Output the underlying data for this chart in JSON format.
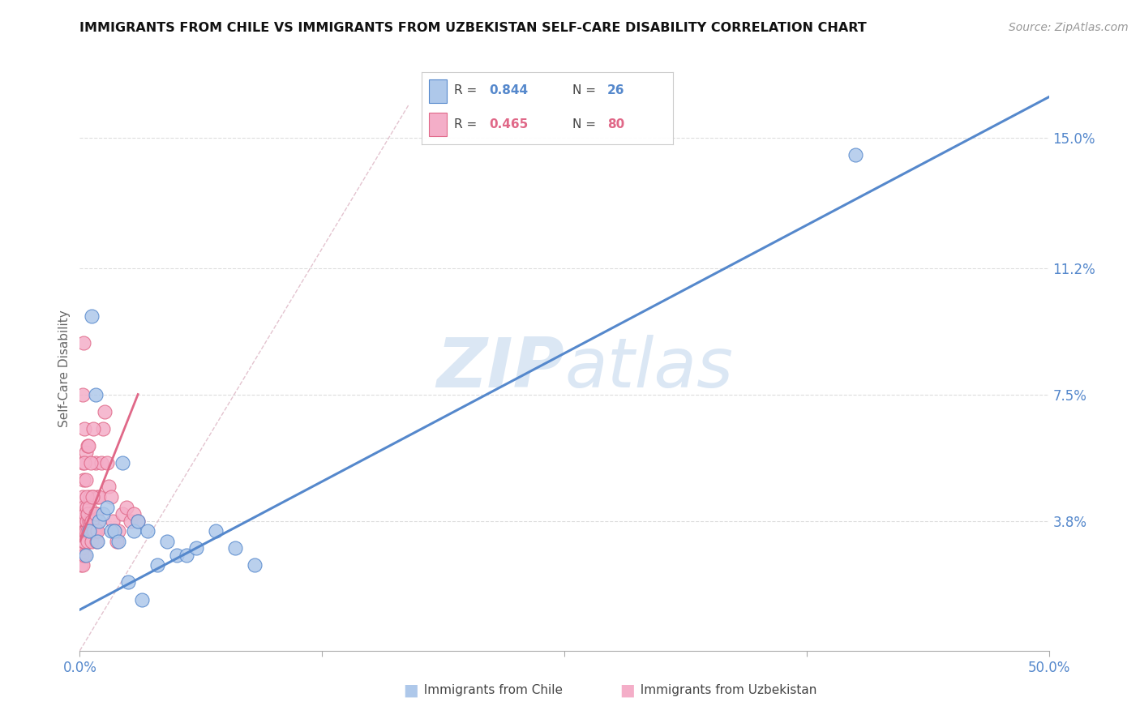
{
  "title": "IMMIGRANTS FROM CHILE VS IMMIGRANTS FROM UZBEKISTAN SELF-CARE DISABILITY CORRELATION CHART",
  "source": "Source: ZipAtlas.com",
  "ylabel": "Self-Care Disability",
  "xlim": [
    0.0,
    50.0
  ],
  "ylim": [
    0.0,
    16.5
  ],
  "ytick_vals": [
    3.8,
    7.5,
    11.2,
    15.0
  ],
  "ytick_labels": [
    "3.8%",
    "7.5%",
    "11.2%",
    "15.0%"
  ],
  "xtick_vals": [
    0,
    12.5,
    25,
    37.5,
    50
  ],
  "xtick_labels": [
    "0.0%",
    "",
    "",
    "",
    "50.0%"
  ],
  "r_chile": "0.844",
  "n_chile": "26",
  "r_uzbekistan": "0.465",
  "n_uzbekistan": "80",
  "chile_fill": "#aec8ea",
  "chile_edge": "#5588cc",
  "uzbek_fill": "#f4aec8",
  "uzbek_edge": "#e06888",
  "chile_line_color": "#5588cc",
  "uzbek_line_color": "#e06888",
  "diag_color": "#cccccc",
  "grid_color": "#dddddd",
  "watermark_color": "#ccddf0",
  "background": "#ffffff",
  "chile_x": [
    0.3,
    0.5,
    0.6,
    0.8,
    0.9,
    1.0,
    1.2,
    1.4,
    1.6,
    1.8,
    2.0,
    2.2,
    2.5,
    2.8,
    3.0,
    3.2,
    3.5,
    4.0,
    4.5,
    5.0,
    5.5,
    6.0,
    7.0,
    8.0,
    9.0,
    40.0
  ],
  "chile_y": [
    2.8,
    3.5,
    9.8,
    7.5,
    3.2,
    3.8,
    4.0,
    4.2,
    3.5,
    3.5,
    3.2,
    5.5,
    2.0,
    3.5,
    3.8,
    1.5,
    3.5,
    2.5,
    3.2,
    2.8,
    2.8,
    3.0,
    3.5,
    3.0,
    2.5,
    14.5
  ],
  "uzbek_x": [
    0.05,
    0.06,
    0.07,
    0.08,
    0.09,
    0.1,
    0.1,
    0.12,
    0.13,
    0.14,
    0.15,
    0.16,
    0.17,
    0.18,
    0.19,
    0.2,
    0.21,
    0.22,
    0.23,
    0.24,
    0.25,
    0.26,
    0.28,
    0.3,
    0.32,
    0.34,
    0.36,
    0.38,
    0.4,
    0.42,
    0.45,
    0.48,
    0.5,
    0.52,
    0.55,
    0.58,
    0.6,
    0.63,
    0.65,
    0.68,
    0.7,
    0.73,
    0.76,
    0.8,
    0.84,
    0.88,
    0.92,
    0.96,
    1.0,
    1.1,
    1.2,
    1.3,
    1.4,
    1.5,
    1.6,
    1.7,
    1.8,
    1.9,
    2.0,
    2.2,
    2.4,
    2.6,
    2.8,
    3.0,
    0.15,
    0.2,
    0.25,
    0.3,
    0.35,
    0.4,
    0.45,
    0.5,
    0.55,
    0.6,
    0.65,
    0.7,
    0.75,
    0.8,
    0.85,
    0.9
  ],
  "uzbek_y": [
    2.5,
    3.2,
    3.5,
    3.0,
    2.8,
    3.8,
    4.0,
    3.5,
    2.5,
    3.0,
    4.5,
    3.8,
    5.5,
    5.0,
    3.2,
    3.8,
    4.2,
    3.5,
    3.2,
    2.8,
    6.5,
    3.5,
    4.0,
    5.8,
    3.5,
    4.2,
    3.8,
    3.5,
    6.0,
    3.2,
    4.0,
    3.5,
    3.8,
    4.5,
    3.5,
    3.8,
    3.2,
    4.0,
    3.5,
    3.8,
    4.5,
    3.5,
    4.0,
    5.5,
    3.5,
    4.0,
    4.5,
    3.8,
    4.5,
    5.5,
    6.5,
    7.0,
    5.5,
    4.8,
    4.5,
    3.8,
    3.5,
    3.2,
    3.5,
    4.0,
    4.2,
    3.8,
    4.0,
    3.8,
    7.5,
    9.0,
    5.5,
    5.0,
    4.5,
    4.0,
    6.0,
    4.2,
    5.5,
    3.8,
    4.5,
    6.5,
    3.5,
    4.0,
    3.2,
    3.5
  ],
  "chile_regr_x0": 0.0,
  "chile_regr_y0": 1.2,
  "chile_regr_x1": 50.0,
  "chile_regr_y1": 16.2,
  "uzbek_regr_x0": 0.0,
  "uzbek_regr_y0": 3.2,
  "uzbek_regr_x1": 3.0,
  "uzbek_regr_y1": 7.5,
  "diag_x0": 0.0,
  "diag_y0": 0.0,
  "diag_x1": 17.0,
  "diag_y1": 16.0
}
